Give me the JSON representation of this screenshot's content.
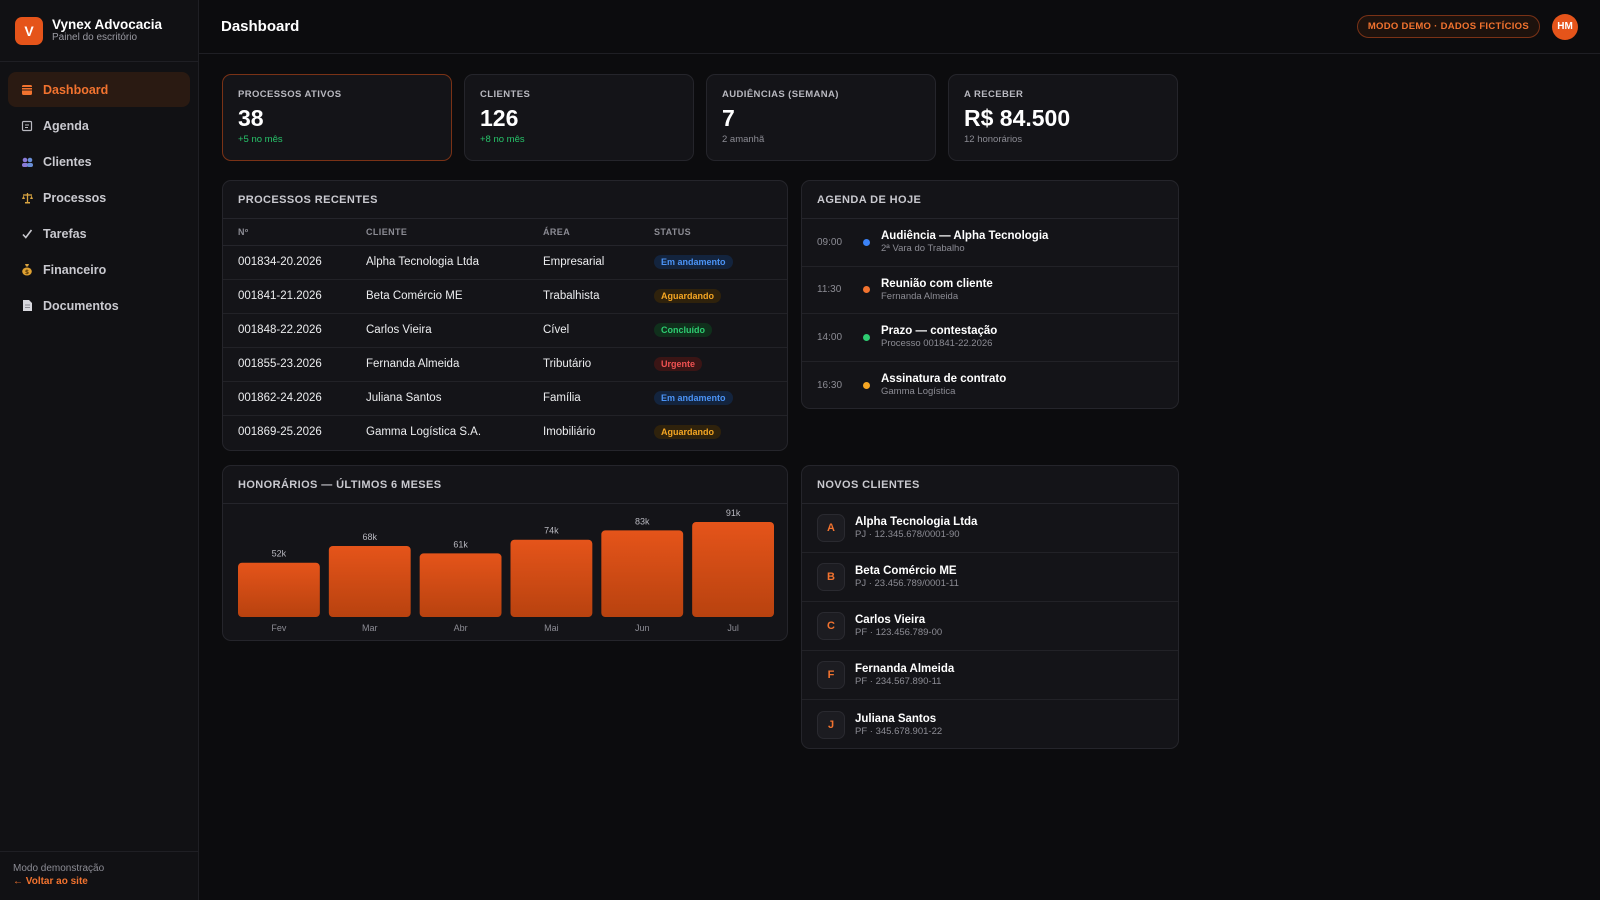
{
  "brand": {
    "initial": "V",
    "name": "Vynex Advocacia",
    "subtitle": "Painel do escritório"
  },
  "nav": [
    {
      "label": "Dashboard",
      "icon": "grid-icon",
      "active": true
    },
    {
      "label": "Agenda",
      "icon": "calendar-icon",
      "active": false
    },
    {
      "label": "Clientes",
      "icon": "users-icon",
      "active": false
    },
    {
      "label": "Processos",
      "icon": "scales-icon",
      "active": false
    },
    {
      "label": "Tarefas",
      "icon": "check-icon",
      "active": false
    },
    {
      "label": "Financeiro",
      "icon": "money-bag-icon",
      "active": false
    },
    {
      "label": "Documentos",
      "icon": "document-icon",
      "active": false
    }
  ],
  "sidebar_footer": {
    "note": "Modo demonstração",
    "link": "← Voltar ao site"
  },
  "header": {
    "title": "Dashboard",
    "demo_badge": "MODO DEMO · DADOS FICTÍCIOS",
    "avatar": "HM"
  },
  "stats": [
    {
      "label": "PROCESSOS ATIVOS",
      "value": "38",
      "note": "+5 no mês",
      "positive": true
    },
    {
      "label": "CLIENTES",
      "value": "126",
      "note": "+8 no mês",
      "positive": true
    },
    {
      "label": "AUDIÊNCIAS (SEMANA)",
      "value": "7",
      "note": "2 amanhã",
      "positive": false
    },
    {
      "label": "A RECEBER",
      "value": "R$ 84.500",
      "note": "12 honorários",
      "positive": false
    }
  ],
  "processes": {
    "title": "PROCESSOS RECENTES",
    "columns": [
      "Nº",
      "CLIENTE",
      "ÁREA",
      "STATUS"
    ],
    "rows": [
      {
        "num": "001834-20.2026",
        "client": "Alpha Tecnologia Ltda",
        "area": "Empresarial",
        "status": "Em andamento",
        "tone": "blue"
      },
      {
        "num": "001841-21.2026",
        "client": "Beta Comércio ME",
        "area": "Trabalhista",
        "status": "Aguardando",
        "tone": "amber"
      },
      {
        "num": "001848-22.2026",
        "client": "Carlos Vieira",
        "area": "Cível",
        "status": "Concluído",
        "tone": "green"
      },
      {
        "num": "001855-23.2026",
        "client": "Fernanda Almeida",
        "area": "Tributário",
        "status": "Urgente",
        "tone": "red"
      },
      {
        "num": "001862-24.2026",
        "client": "Juliana Santos",
        "area": "Família",
        "status": "Em andamento",
        "tone": "blue"
      },
      {
        "num": "001869-25.2026",
        "client": "Gamma Logística S.A.",
        "area": "Imobiliário",
        "status": "Aguardando",
        "tone": "amber"
      }
    ]
  },
  "agenda": {
    "title": "AGENDA DE HOJE",
    "items": [
      {
        "time": "09:00",
        "title": "Audiência — Alpha Tecnologia",
        "sub": "2ª Vara do Trabalho",
        "color": "#3b82f6"
      },
      {
        "time": "11:30",
        "title": "Reunião com cliente",
        "sub": "Fernanda Almeida",
        "color": "#f2732f"
      },
      {
        "time": "14:00",
        "title": "Prazo — contestação",
        "sub": "Processo 001841-22.2026",
        "color": "#2ecc71"
      },
      {
        "time": "16:30",
        "title": "Assinatura de contrato",
        "sub": "Gamma Logística",
        "color": "#f5a623"
      }
    ]
  },
  "new_clients": {
    "title": "NOVOS CLIENTES",
    "items": [
      {
        "initial": "A",
        "name": "Alpha Tecnologia Ltda",
        "doc": "PJ · 12.345.678/0001-90"
      },
      {
        "initial": "B",
        "name": "Beta Comércio ME",
        "doc": "PJ · 23.456.789/0001-11"
      },
      {
        "initial": "C",
        "name": "Carlos Vieira",
        "doc": "PF · 123.456.789-00"
      },
      {
        "initial": "F",
        "name": "Fernanda Almeida",
        "doc": "PF · 234.567.890-11"
      },
      {
        "initial": "J",
        "name": "Juliana Santos",
        "doc": "PF · 345.678.901-22"
      }
    ]
  },
  "chart_data": {
    "type": "bar",
    "title": "HONORÁRIOS — ÚLTIMOS 6 MESES",
    "categories": [
      "Fev",
      "Mar",
      "Abr",
      "Mai",
      "Jun",
      "Jul"
    ],
    "values": [
      52,
      68,
      61,
      74,
      83,
      91
    ],
    "labels": [
      "52k",
      "68k",
      "61k",
      "74k",
      "83k",
      "91k"
    ],
    "ylim": [
      0,
      91
    ],
    "bar_color": "#e5541a"
  },
  "colors": {
    "accent": "#f2732f",
    "brand": "#e5541a",
    "background": "#0c0c0e"
  }
}
